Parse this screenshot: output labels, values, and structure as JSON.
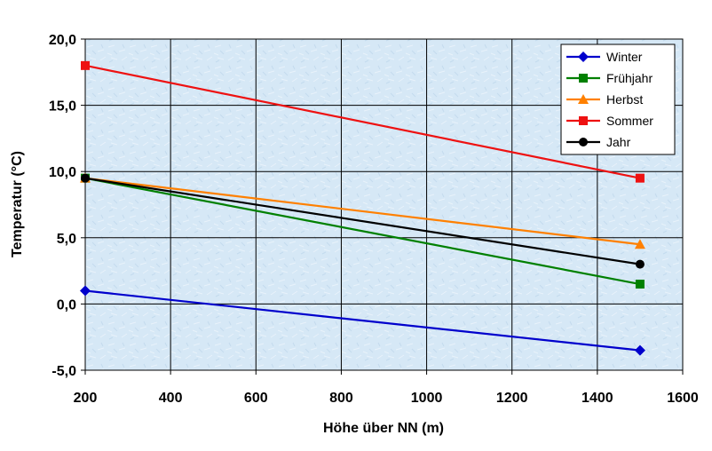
{
  "chart_data": {
    "type": "line",
    "xlabel": "Höhe über NN (m)",
    "ylabel": "Temperatur (°C)",
    "xlim": [
      200,
      1600
    ],
    "ylim": [
      -5,
      20
    ],
    "x_ticks": [
      200,
      400,
      600,
      800,
      1000,
      1200,
      1400,
      1600
    ],
    "y_ticks": [
      -5,
      0,
      5,
      10,
      15,
      20
    ],
    "y_tick_labels": [
      "-5,0",
      "0,0",
      "5,0",
      "10,0",
      "15,0",
      "20,0"
    ],
    "grid": true,
    "legend_position": "top-right",
    "series": [
      {
        "name": "Winter",
        "marker": "diamond",
        "color": "#0000cc",
        "x": [
          200,
          1500
        ],
        "values": [
          1.0,
          -3.5
        ]
      },
      {
        "name": "Frühjahr",
        "marker": "square",
        "color": "#008000",
        "x": [
          200,
          1500
        ],
        "values": [
          9.5,
          1.5
        ]
      },
      {
        "name": "Herbst",
        "marker": "triangle",
        "color": "#ff8000",
        "x": [
          200,
          1500
        ],
        "values": [
          9.5,
          4.5
        ]
      },
      {
        "name": "Sommer",
        "marker": "square",
        "color": "#ee1111",
        "x": [
          200,
          1500
        ],
        "values": [
          18.0,
          9.5
        ]
      },
      {
        "name": "Jahr",
        "marker": "circle",
        "color": "#000000",
        "x": [
          200,
          1500
        ],
        "values": [
          9.5,
          3.0
        ]
      }
    ]
  }
}
